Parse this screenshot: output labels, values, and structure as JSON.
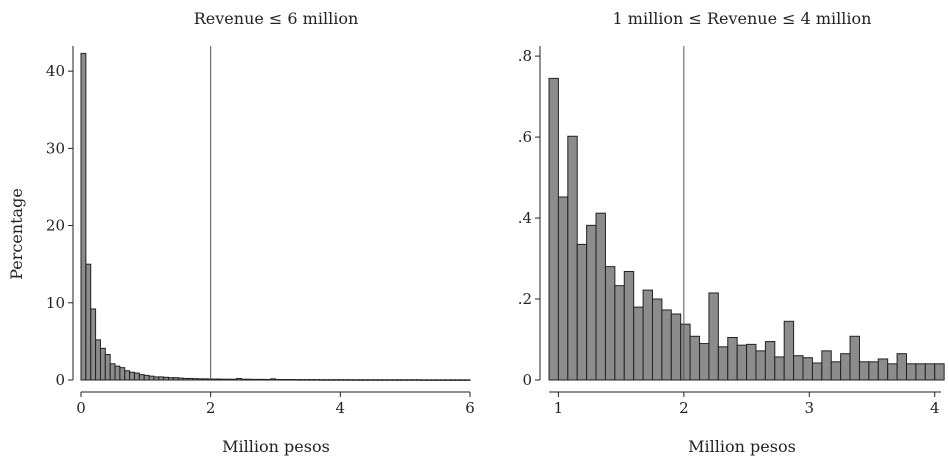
{
  "colors": {
    "bar_fill": "#8c8c8c",
    "bar_stroke": "#222222",
    "reference_line": "#555555"
  },
  "chart_data": [
    {
      "type": "bar",
      "histogram": true,
      "title": "Revenue ≤ 6 million",
      "xlabel": "Million pesos",
      "ylabel": "Percentage",
      "xlim": [
        0,
        6
      ],
      "ylim": [
        0,
        43
      ],
      "x_ticks": [
        "0",
        "2",
        "4",
        "6"
      ],
      "y_ticks": [
        "0",
        "10",
        "20",
        "30",
        "40"
      ],
      "reference_line_x": 2,
      "bin_start": 0,
      "bin_width": 0.075,
      "values": [
        42.3,
        15.0,
        9.2,
        5.2,
        4.1,
        3.3,
        2.1,
        1.8,
        1.6,
        1.2,
        1.0,
        0.9,
        0.7,
        0.6,
        0.5,
        0.4,
        0.4,
        0.35,
        0.3,
        0.3,
        0.25,
        0.2,
        0.2,
        0.18,
        0.15,
        0.15,
        0.13,
        0.12,
        0.12,
        0.1,
        0.1,
        0.1,
        0.2,
        0.1,
        0.1,
        0.08,
        0.08,
        0.08,
        0.07,
        0.15,
        0.07,
        0.06,
        0.06,
        0.06,
        0.05,
        0.05,
        0.05,
        0.05,
        0.05,
        0.04,
        0.04,
        0.04,
        0.04,
        0.04,
        0.04,
        0.04,
        0.03,
        0.03,
        0.03,
        0.03,
        0.03,
        0.03,
        0.03,
        0.03,
        0.03,
        0.03,
        0.03,
        0.03,
        0.03,
        0.03,
        0.02,
        0.02,
        0.02,
        0.02,
        0.02,
        0.02,
        0.02,
        0.02,
        0.02,
        0.02
      ]
    },
    {
      "type": "bar",
      "histogram": true,
      "title": "1 million ≤ Revenue ≤ 4 million",
      "xlabel": "Million pesos",
      "ylabel": "",
      "xlim": [
        0.925,
        4.05
      ],
      "ylim": [
        0,
        0.82
      ],
      "x_ticks": [
        "1",
        "2",
        "3",
        "4"
      ],
      "y_ticks": [
        "0",
        ".2",
        ".4",
        ".6",
        ".8"
      ],
      "reference_line_x": 2,
      "bin_start": 0.925,
      "bin_width": 0.075,
      "values": [
        0.745,
        0.452,
        0.602,
        0.335,
        0.382,
        0.412,
        0.28,
        0.233,
        0.268,
        0.18,
        0.222,
        0.2,
        0.173,
        0.163,
        0.138,
        0.108,
        0.09,
        0.215,
        0.082,
        0.105,
        0.086,
        0.088,
        0.072,
        0.095,
        0.057,
        0.145,
        0.06,
        0.055,
        0.042,
        0.072,
        0.045,
        0.065,
        0.108,
        0.045,
        0.045,
        0.052,
        0.04,
        0.065,
        0.04,
        0.04,
        0.04,
        0.04
      ]
    }
  ]
}
